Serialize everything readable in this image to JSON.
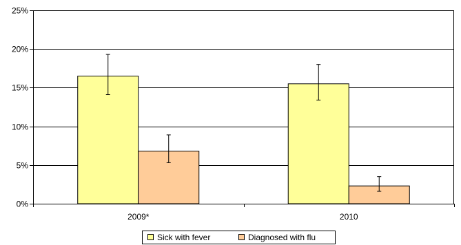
{
  "chart_data": {
    "type": "bar",
    "categories": [
      "2009*",
      "2010"
    ],
    "series": [
      {
        "name": "Sick with fever",
        "values": [
          16.5,
          15.5
        ],
        "error_low": [
          14.1,
          13.4
        ],
        "error_high": [
          19.3,
          18.0
        ],
        "color": "#ffff99"
      },
      {
        "name": "Diagnosed with flu",
        "values": [
          6.8,
          2.3
        ],
        "error_low": [
          5.3,
          1.6
        ],
        "error_high": [
          8.9,
          3.5
        ],
        "color": "#ffcc99"
      }
    ],
    "ylim": [
      0,
      25
    ],
    "yticks": [
      0,
      5,
      10,
      15,
      20,
      25
    ],
    "ytick_labels": [
      "0%",
      "5%",
      "10%",
      "15%",
      "20%",
      "25%"
    ],
    "title": "",
    "xlabel": "",
    "ylabel": "",
    "grid": true,
    "legend_position": "bottom"
  }
}
